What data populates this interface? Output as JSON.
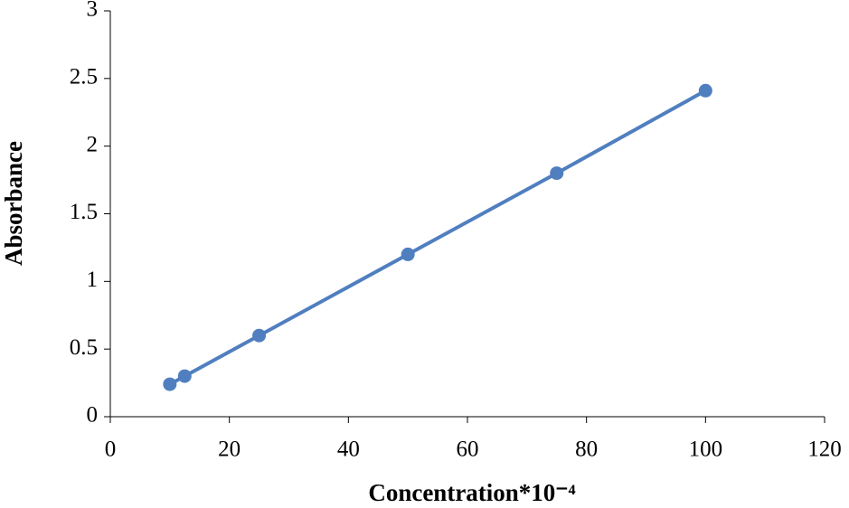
{
  "chart_data": {
    "type": "line",
    "x_label": "Concentration*10⁻⁴",
    "y_label": "Absorbance",
    "x": [
      10,
      12.5,
      25,
      50,
      75,
      100
    ],
    "values": [
      0.24,
      0.3,
      0.6,
      1.2,
      1.8,
      2.41
    ],
    "color": "#4f7fbf",
    "markers": true,
    "xlim": [
      0,
      120
    ],
    "xticks": [
      0,
      20,
      40,
      60,
      80,
      100,
      120
    ],
    "ylim": [
      0,
      3
    ],
    "yticks": [
      0,
      0.5,
      1,
      1.5,
      2,
      2.5,
      3
    ],
    "grid": false
  }
}
